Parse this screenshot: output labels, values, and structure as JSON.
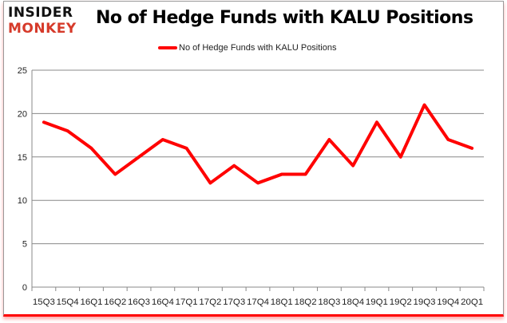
{
  "logo": {
    "line1": "INSIDER",
    "line2": "MONKEY"
  },
  "chart_data": {
    "type": "line",
    "title": "No of Hedge Funds with KALU Positions",
    "xlabel": "",
    "ylabel": "",
    "categories": [
      "15Q3",
      "15Q4",
      "16Q1",
      "16Q2",
      "16Q3",
      "16Q4",
      "17Q1",
      "17Q2",
      "17Q3",
      "17Q4",
      "18Q1",
      "18Q2",
      "18Q3",
      "18Q4",
      "19Q1",
      "19Q2",
      "19Q3",
      "19Q4",
      "20Q1"
    ],
    "series": [
      {
        "name": "No of Hedge Funds with KALU Positions",
        "color": "#ff0000",
        "values": [
          19,
          18,
          16,
          13,
          15,
          17,
          16,
          12,
          14,
          12,
          13,
          13,
          17,
          14,
          19,
          15,
          21,
          17,
          16
        ]
      }
    ],
    "ylim": [
      0,
      25
    ],
    "yticks": [
      0,
      5,
      10,
      15,
      20,
      25
    ],
    "grid": true,
    "legend": "top-center"
  }
}
